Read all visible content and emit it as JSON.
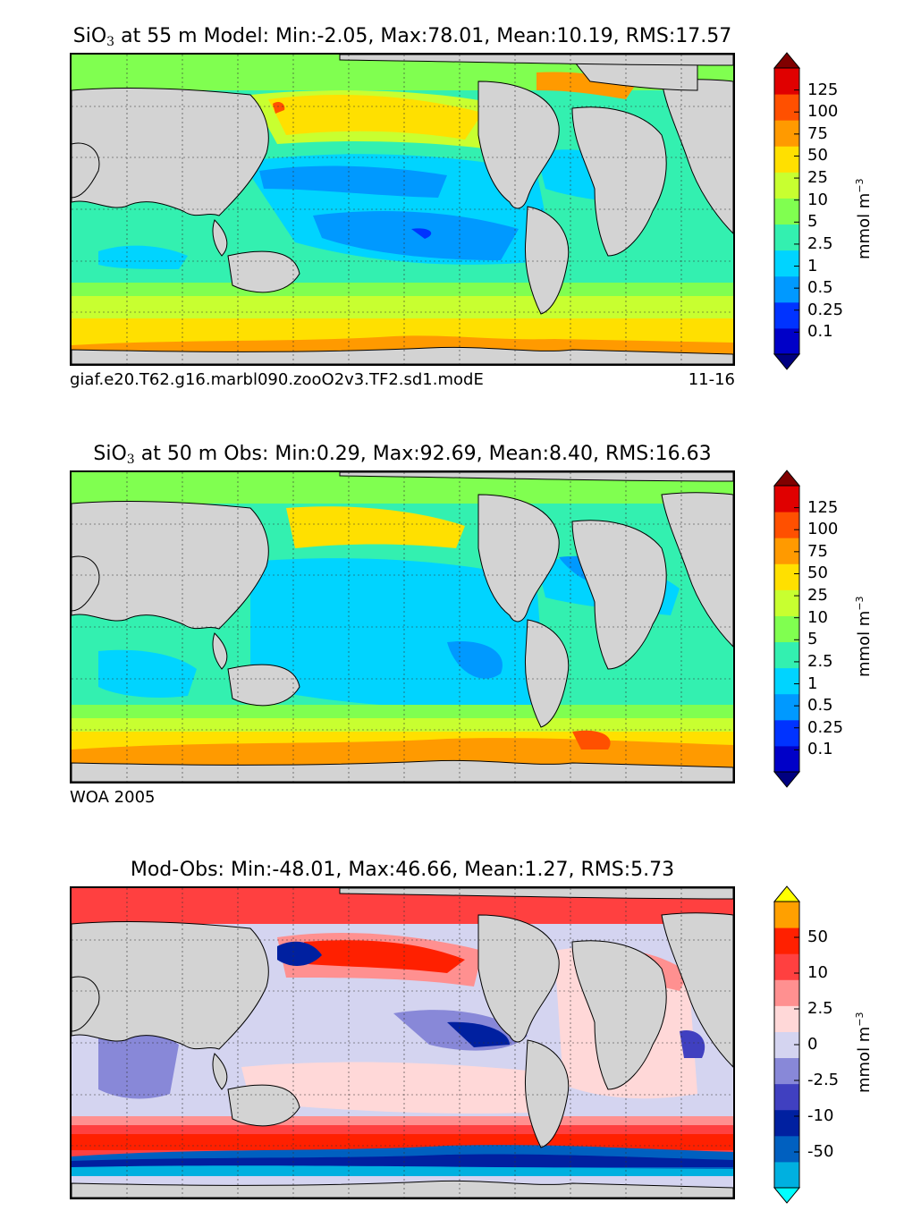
{
  "panels": [
    {
      "id": "model",
      "title_prefix": "SiO",
      "title_sub": "3",
      "title_suffix": " at 55 m Model: Min:-2.05, Max:78.01, Mean:10.19, RMS:17.57",
      "footer_left": "giaf.e20.T62.g16.marbl090.zooO2v3.TF2.sd1.modE",
      "footer_right": "11-16",
      "colorbar": {
        "ticks": [
          "125",
          "100",
          "75",
          "50",
          "25",
          "10",
          "5",
          "2.5",
          "1",
          "0.5",
          "0.25",
          "0.1"
        ],
        "colors": [
          "#000080",
          "#0000c8",
          "#0033ff",
          "#0099ff",
          "#00d4ff",
          "#33f0b0",
          "#80ff50",
          "#c8ff30",
          "#ffe000",
          "#ff9a00",
          "#ff5000",
          "#e00000",
          "#800000"
        ],
        "units": "mmol m",
        "units_sup": "−3"
      }
    },
    {
      "id": "obs",
      "title_prefix": "SiO",
      "title_sub": "3",
      "title_suffix": " at 50 m Obs: Min:0.29, Max:92.69, Mean:8.40, RMS:16.63",
      "footer_left": "WOA 2005",
      "footer_right": "",
      "colorbar": {
        "ticks": [
          "125",
          "100",
          "75",
          "50",
          "25",
          "10",
          "5",
          "2.5",
          "1",
          "0.5",
          "0.25",
          "0.1"
        ],
        "colors": [
          "#000080",
          "#0000c8",
          "#0033ff",
          "#0099ff",
          "#00d4ff",
          "#33f0b0",
          "#80ff50",
          "#c8ff30",
          "#ffe000",
          "#ff9a00",
          "#ff5000",
          "#e00000",
          "#800000"
        ],
        "units": "mmol m",
        "units_sup": "−3"
      }
    },
    {
      "id": "diff",
      "title_prefix": "Mod-Obs: Min:-48.01, Max:46.66, Mean:1.27, RMS:5.73",
      "title_sub": "",
      "title_suffix": "",
      "footer_left": "",
      "footer_right": "",
      "colorbar": {
        "ticks": [
          "50",
          "10",
          "2.5",
          "0",
          "-2.5",
          "-10",
          "-50"
        ],
        "colors": [
          "#00ffff",
          "#00b0e0",
          "#0060c0",
          "#0020a0",
          "#4040c0",
          "#8888d8",
          "#d4d4f0",
          "#ffd8d8",
          "#ff9090",
          "#ff4040",
          "#ff2000",
          "#ffa000",
          "#ffff00"
        ],
        "units": "mmol m",
        "units_sup": "−3"
      }
    }
  ],
  "map_style": {
    "land_color": "#d3d3d3",
    "gridline_color": "#333333"
  }
}
